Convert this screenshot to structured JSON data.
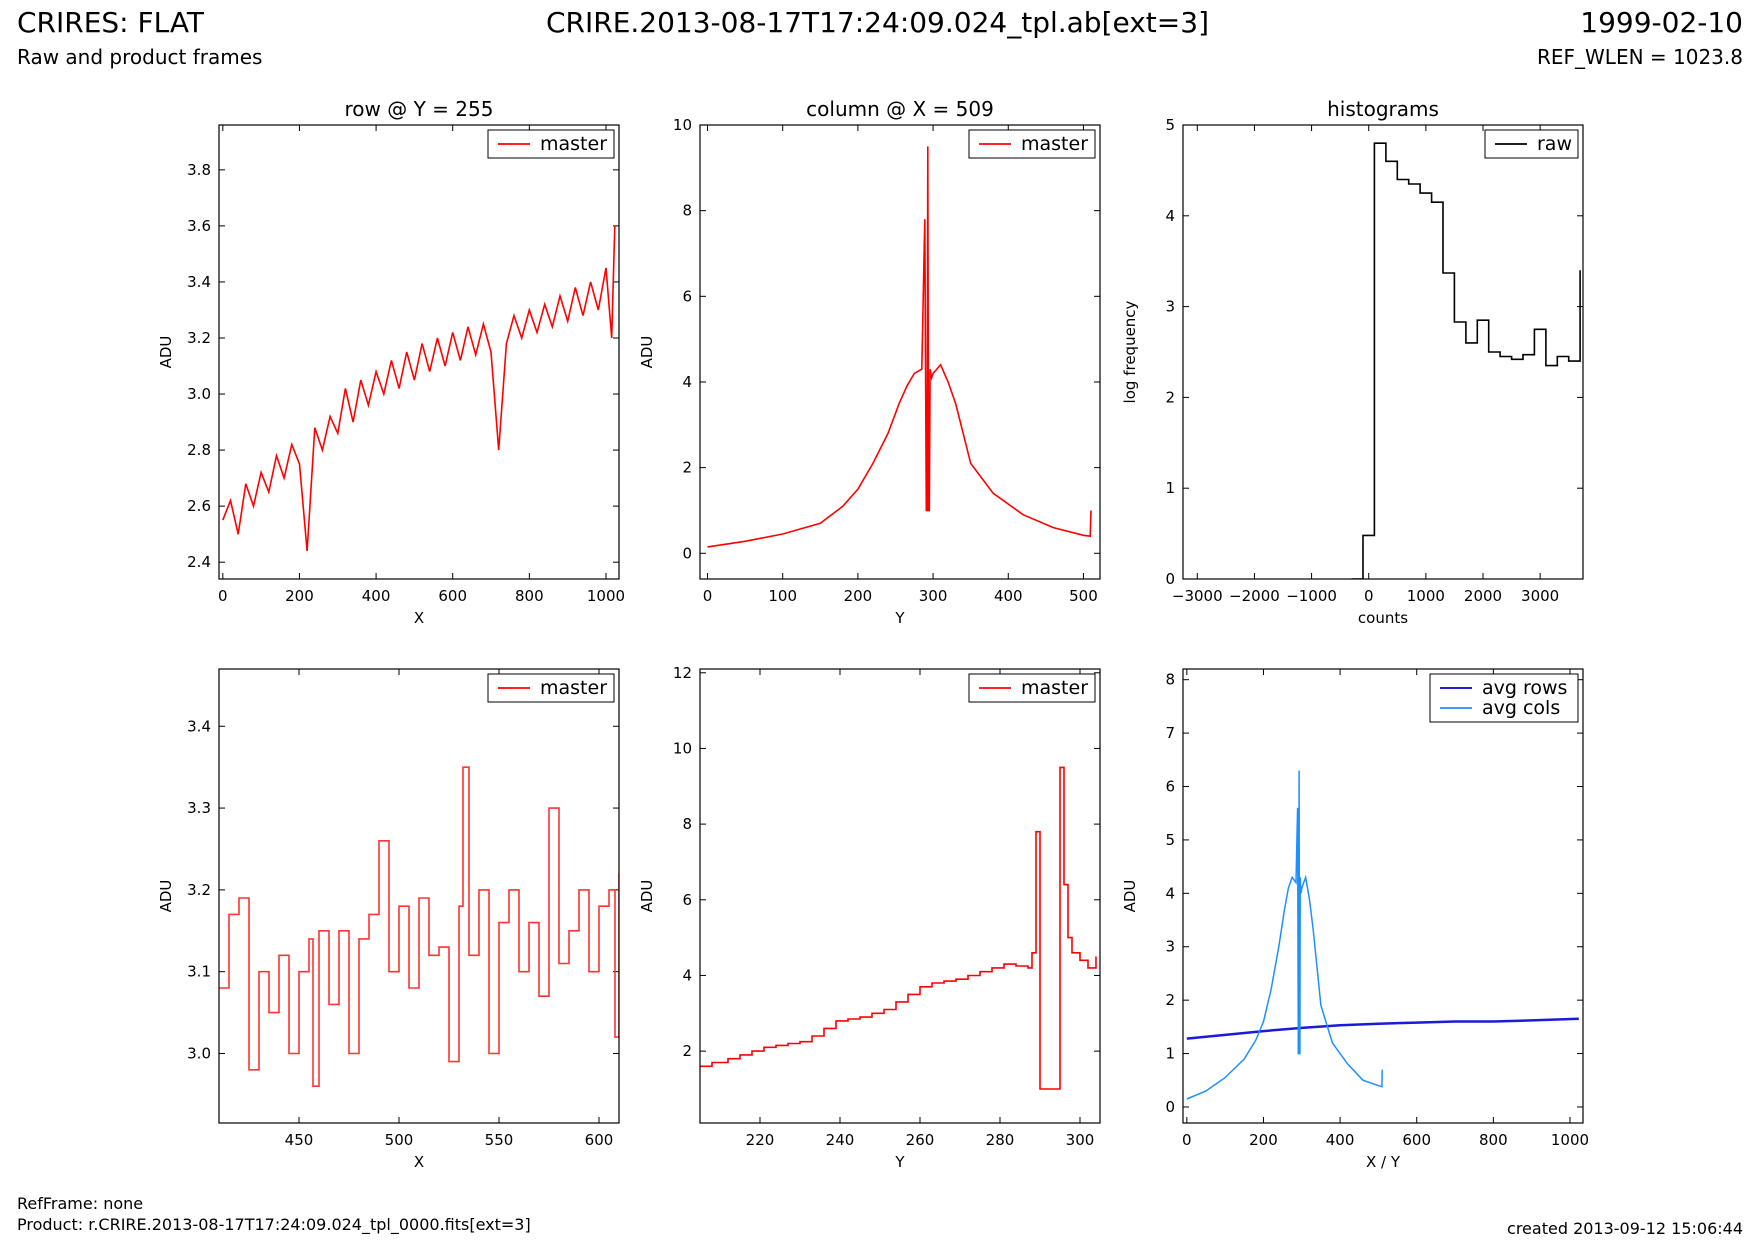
{
  "header": {
    "title_left": "CRIRES: FLAT",
    "subtitle_left": "Raw and product frames",
    "title_center": "CRIRE.2013-08-17T17:24:09.024_tpl.ab[ext=3]",
    "title_right": "1999-02-10",
    "subtitle_right": "REF_WLEN = 1023.8"
  },
  "footer": {
    "ref_frame": "RefFrame: none",
    "product": "Product: r.CRIRE.2013-08-17T17:24:09.024_tpl_0000.fits[ext=3]",
    "created": "created 2013-09-12 15:06:44"
  },
  "chart_data": [
    {
      "id": "row",
      "type": "line",
      "title": "row @ Y = 255",
      "xlabel": "X",
      "ylabel": "ADU",
      "xlim": [
        -10,
        1034
      ],
      "ylim": [
        2.34,
        3.96
      ],
      "xticks": [
        0,
        200,
        400,
        600,
        800,
        1000
      ],
      "yticks": [
        2.4,
        2.6,
        2.8,
        3.0,
        3.2,
        3.4,
        3.6,
        3.8
      ],
      "ytick_labels": [
        "2.4",
        "2.6",
        "2.8",
        "3.0",
        "3.2",
        "3.4",
        "3.6",
        "3.8"
      ],
      "legend": {
        "entries": [
          {
            "label": "master",
            "color": "#ff0000"
          }
        ],
        "position": "top-right"
      },
      "series": [
        {
          "name": "master",
          "color": "#ff0000",
          "step": false,
          "x": [
            0,
            20,
            40,
            60,
            80,
            100,
            120,
            140,
            160,
            180,
            200,
            220,
            240,
            260,
            280,
            300,
            320,
            340,
            360,
            380,
            400,
            420,
            440,
            460,
            480,
            500,
            520,
            540,
            560,
            580,
            600,
            620,
            640,
            660,
            680,
            700,
            720,
            740,
            760,
            780,
            800,
            820,
            840,
            860,
            880,
            900,
            920,
            940,
            960,
            980,
            1000,
            1015,
            1023
          ],
          "y": [
            2.55,
            2.62,
            2.5,
            2.68,
            2.6,
            2.72,
            2.65,
            2.78,
            2.7,
            2.82,
            2.75,
            2.44,
            2.88,
            2.8,
            2.92,
            2.86,
            3.02,
            2.9,
            3.05,
            2.96,
            3.08,
            3.0,
            3.12,
            3.02,
            3.15,
            3.05,
            3.18,
            3.08,
            3.2,
            3.1,
            3.22,
            3.12,
            3.24,
            3.14,
            3.25,
            3.15,
            2.8,
            3.18,
            3.28,
            3.2,
            3.3,
            3.22,
            3.32,
            3.24,
            3.35,
            3.26,
            3.38,
            3.28,
            3.4,
            3.3,
            3.45,
            3.2,
            3.6
          ]
        }
      ]
    },
    {
      "id": "column",
      "type": "line",
      "title": "column @ X = 509",
      "xlabel": "Y",
      "ylabel": "ADU",
      "xlim": [
        -10,
        522
      ],
      "ylim": [
        -0.6,
        10.0
      ],
      "xticks": [
        0,
        100,
        200,
        300,
        400,
        500
      ],
      "yticks": [
        0,
        2,
        4,
        6,
        8,
        10
      ],
      "ytick_labels": [
        "0",
        "2",
        "4",
        "6",
        "8",
        "10"
      ],
      "legend": {
        "entries": [
          {
            "label": "master",
            "color": "#ff0000"
          }
        ],
        "position": "top-right"
      },
      "series": [
        {
          "name": "master",
          "color": "#ff0000",
          "step": false,
          "x": [
            0,
            50,
            100,
            150,
            180,
            200,
            220,
            240,
            255,
            265,
            275,
            285,
            289,
            291,
            292,
            293,
            294,
            295,
            296,
            298,
            300,
            310,
            320,
            330,
            340,
            350,
            380,
            420,
            460,
            500,
            509,
            510
          ],
          "y": [
            0.15,
            0.28,
            0.45,
            0.7,
            1.1,
            1.5,
            2.1,
            2.8,
            3.5,
            3.9,
            4.2,
            4.3,
            7.8,
            1.0,
            1.0,
            9.5,
            1.0,
            1.0,
            4.3,
            4.1,
            4.2,
            4.4,
            4.0,
            3.5,
            2.8,
            2.1,
            1.4,
            0.9,
            0.6,
            0.42,
            0.4,
            1.0
          ]
        }
      ]
    },
    {
      "id": "histograms",
      "type": "line",
      "title": "histograms",
      "xlabel": "counts",
      "ylabel": "log frequency",
      "xlim": [
        -3250,
        3750
      ],
      "ylim": [
        0,
        5.0
      ],
      "xticks": [
        -3000,
        -2000,
        -1000,
        0,
        1000,
        2000,
        3000
      ],
      "xtick_labels": [
        "−3000",
        "−2000",
        "−1000",
        "0",
        "1000",
        "2000",
        "3000"
      ],
      "yticks": [
        0,
        1,
        2,
        3,
        4,
        5
      ],
      "ytick_labels": [
        "0",
        "1",
        "2",
        "3",
        "4",
        "5"
      ],
      "legend": {
        "entries": [
          {
            "label": "raw",
            "color": "#000000"
          }
        ],
        "position": "top-right"
      },
      "series": [
        {
          "name": "raw",
          "color": "#000000",
          "step": true,
          "x": [
            -300,
            -100,
            100,
            300,
            500,
            700,
            900,
            1100,
            1300,
            1500,
            1700,
            1900,
            2100,
            2300,
            2500,
            2700,
            2900,
            3100,
            3300,
            3500,
            3700
          ],
          "y": [
            0,
            0.48,
            4.8,
            4.6,
            4.4,
            4.35,
            4.25,
            4.15,
            3.37,
            2.83,
            2.6,
            2.85,
            2.5,
            2.45,
            2.42,
            2.47,
            2.75,
            2.35,
            2.45,
            2.4,
            3.4
          ]
        }
      ]
    },
    {
      "id": "row-zoom",
      "type": "line",
      "title": "",
      "xlabel": "X",
      "ylabel": "ADU",
      "xlim": [
        410,
        610
      ],
      "ylim": [
        2.915,
        3.47
      ],
      "xticks": [
        450,
        500,
        550,
        600
      ],
      "yticks": [
        3.0,
        3.1,
        3.2,
        3.3,
        3.4
      ],
      "ytick_labels": [
        "3.0",
        "3.1",
        "3.2",
        "3.3",
        "3.4"
      ],
      "legend": {
        "entries": [
          {
            "label": "master",
            "color": "#ff0000"
          }
        ],
        "position": "top-right"
      },
      "series": [
        {
          "name": "master",
          "color": "#ff3333",
          "step": true,
          "x": [
            410,
            415,
            420,
            425,
            430,
            435,
            440,
            445,
            450,
            455,
            457,
            460,
            465,
            470,
            475,
            480,
            485,
            490,
            495,
            500,
            505,
            510,
            515,
            520,
            525,
            530,
            532,
            535,
            540,
            545,
            550,
            555,
            560,
            565,
            570,
            575,
            580,
            585,
            590,
            595,
            600,
            605,
            608,
            610
          ],
          "y": [
            3.08,
            3.17,
            3.19,
            2.98,
            3.1,
            3.05,
            3.12,
            3.0,
            3.1,
            3.14,
            2.96,
            3.15,
            3.06,
            3.15,
            3.0,
            3.14,
            3.17,
            3.26,
            3.1,
            3.18,
            3.08,
            3.19,
            3.12,
            3.13,
            2.99,
            3.18,
            3.35,
            3.12,
            3.2,
            3.0,
            3.16,
            3.2,
            3.1,
            3.16,
            3.07,
            3.3,
            3.11,
            3.15,
            3.2,
            3.1,
            3.18,
            3.2,
            3.02,
            3.22
          ]
        }
      ]
    },
    {
      "id": "column-zoom",
      "type": "line",
      "title": "",
      "xlabel": "Y",
      "ylabel": "ADU",
      "xlim": [
        205,
        305
      ],
      "ylim": [
        0.1,
        12.1
      ],
      "xticks": [
        220,
        240,
        260,
        280,
        300
      ],
      "yticks": [
        2,
        4,
        6,
        8,
        10,
        12
      ],
      "ytick_labels": [
        "2",
        "4",
        "6",
        "8",
        "10",
        "12"
      ],
      "legend": {
        "entries": [
          {
            "label": "master",
            "color": "#ff0000"
          }
        ],
        "position": "top-right"
      },
      "series": [
        {
          "name": "master",
          "color": "#ff0000",
          "step": true,
          "x": [
            205,
            208,
            212,
            215,
            218,
            221,
            224,
            227,
            230,
            233,
            236,
            239,
            242,
            245,
            248,
            251,
            254,
            257,
            260,
            263,
            266,
            269,
            272,
            275,
            278,
            281,
            284,
            287,
            288,
            289,
            290,
            291,
            292,
            293,
            294,
            295,
            296,
            297,
            298,
            300,
            302,
            304
          ],
          "y": [
            1.6,
            1.7,
            1.8,
            1.9,
            2.0,
            2.1,
            2.15,
            2.2,
            2.25,
            2.4,
            2.6,
            2.8,
            2.85,
            2.9,
            3.0,
            3.1,
            3.3,
            3.5,
            3.7,
            3.8,
            3.85,
            3.9,
            4.0,
            4.1,
            4.2,
            4.3,
            4.25,
            4.2,
            4.6,
            7.8,
            1.0,
            1.0,
            1.0,
            1.0,
            1.0,
            9.5,
            6.4,
            5.0,
            4.6,
            4.4,
            4.2,
            4.5
          ]
        }
      ]
    },
    {
      "id": "averages",
      "type": "line",
      "title": "",
      "xlabel": "X / Y",
      "ylabel": "ADU",
      "xlim": [
        -10,
        1034
      ],
      "ylim": [
        -0.3,
        8.2
      ],
      "xticks": [
        0,
        200,
        400,
        600,
        800,
        1000
      ],
      "yticks": [
        0,
        1,
        2,
        3,
        4,
        5,
        6,
        7,
        8
      ],
      "ytick_labels": [
        "0",
        "1",
        "2",
        "3",
        "4",
        "5",
        "6",
        "7",
        "8"
      ],
      "legend": {
        "entries": [
          {
            "label": "avg rows",
            "color": "#0000cc"
          },
          {
            "label": "avg cols",
            "color": "#1e8fff"
          }
        ],
        "position": "top-right"
      },
      "series": [
        {
          "name": "avg rows",
          "color": "#1a1adb",
          "step": false,
          "width": 2.5,
          "x": [
            0,
            100,
            200,
            300,
            400,
            500,
            600,
            700,
            800,
            900,
            1023
          ],
          "y": [
            1.28,
            1.35,
            1.42,
            1.48,
            1.53,
            1.56,
            1.58,
            1.6,
            1.6,
            1.62,
            1.65
          ]
        },
        {
          "name": "avg cols",
          "color": "#1e8fff",
          "step": false,
          "width": 1.5,
          "x": [
            0,
            50,
            100,
            150,
            180,
            200,
            220,
            240,
            255,
            265,
            275,
            285,
            289,
            291,
            292,
            293,
            294,
            295,
            296,
            298,
            300,
            310,
            320,
            330,
            340,
            350,
            380,
            420,
            460,
            500,
            509,
            510
          ],
          "y": [
            0.15,
            0.3,
            0.55,
            0.9,
            1.25,
            1.6,
            2.2,
            3.0,
            3.7,
            4.1,
            4.3,
            4.2,
            5.6,
            1.0,
            1.0,
            6.3,
            1.0,
            1.0,
            4.3,
            4.0,
            4.1,
            4.3,
            3.9,
            3.3,
            2.6,
            1.9,
            1.2,
            0.8,
            0.5,
            0.4,
            0.38,
            0.7
          ]
        }
      ]
    }
  ]
}
